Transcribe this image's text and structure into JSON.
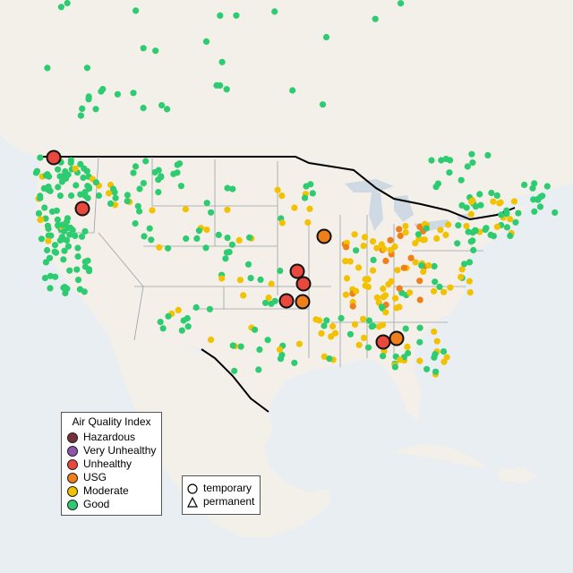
{
  "map": {
    "legend": {
      "title": "Air Quality Index",
      "items": [
        {
          "label": "Hazardous",
          "color": "#7a3038"
        },
        {
          "label": "Very Unhealthy",
          "color": "#8e55a8"
        },
        {
          "label": "Unhealthy",
          "color": "#e8493c"
        },
        {
          "label": "USG",
          "color": "#ef7f1b"
        },
        {
          "label": "Moderate",
          "color": "#f2c200"
        },
        {
          "label": "Good",
          "color": "#2ecc71"
        }
      ]
    },
    "monitor_legend": {
      "items": [
        {
          "label": "temporary",
          "shape": "circle"
        },
        {
          "label": "permanent",
          "shape": "triangle"
        }
      ]
    },
    "colors": {
      "ocean": "#e9eef3",
      "land": "#f3eee9",
      "border": "#000000",
      "state_line": "#9aa0a6",
      "no_data": "#bdbdbd"
    }
  }
}
